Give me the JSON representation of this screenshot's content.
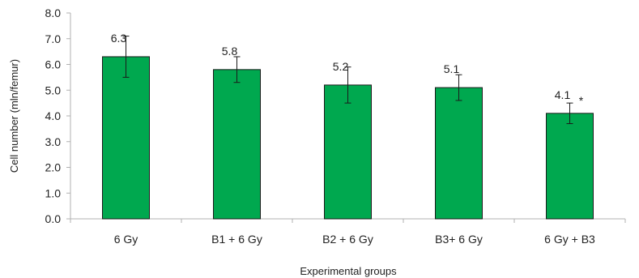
{
  "chart_data": {
    "type": "bar",
    "title": "",
    "xlabel": "Experimental groups",
    "ylabel": "Cell number (mln/femur)",
    "ylim": [
      0,
      8
    ],
    "y_ticks": [
      "0.0",
      "1.0",
      "2.0",
      "3.0",
      "4.0",
      "5.0",
      "6.0",
      "7.0",
      "8.0"
    ],
    "categories": [
      "6 Gy",
      "B1 + 6 Gy",
      "B2 + 6 Gy",
      "B3+ 6 Gy",
      "6 Gy + B3"
    ],
    "values": [
      6.3,
      5.8,
      5.2,
      5.1,
      4.1
    ],
    "value_labels": [
      "6.3",
      "5.8",
      "5.2",
      "5.1",
      "4.1"
    ],
    "errors": [
      0.8,
      0.5,
      0.7,
      0.5,
      0.4
    ],
    "significance": [
      "",
      "",
      "",
      "",
      "*"
    ],
    "bar_color": "#00a84f",
    "bar_edge_color": "#1a1a1a",
    "axis_color": "#b0b0b0",
    "grid": false,
    "legend": "none"
  }
}
